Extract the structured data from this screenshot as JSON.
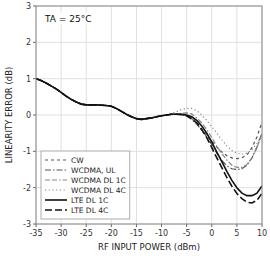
{
  "chart_data": {
    "type": "line",
    "title": "TA = 25°C",
    "xlabel": "RF INPUT POWER (dBm)",
    "ylabel": "LINEARITY ERROR (dB)",
    "xlim": [
      -35,
      10
    ],
    "ylim": [
      -3,
      3
    ],
    "xticks": [
      -35,
      -30,
      -25,
      -20,
      -15,
      -10,
      -5,
      0,
      5,
      10
    ],
    "yticks": [
      -3,
      -2,
      -1,
      0,
      1,
      2,
      3
    ],
    "grid": true,
    "legend": "lower left",
    "x": [
      -35,
      -34,
      -33,
      -32,
      -31,
      -30,
      -29,
      -28,
      -27,
      -26,
      -25,
      -24,
      -23,
      -22,
      -21,
      -20,
      -19,
      -18,
      -17,
      -16,
      -15,
      -14,
      -13,
      -12,
      -11,
      -10,
      -9,
      -8,
      -7,
      -6,
      -5,
      -4,
      -3,
      -2,
      -1,
      0,
      1,
      2,
      3,
      4,
      5,
      6,
      7,
      8,
      9,
      10
    ],
    "series": [
      {
        "name": "CW",
        "color": "#555555",
        "line_style": "dashed",
        "values": [
          1.0,
          0.95,
          0.88,
          0.8,
          0.72,
          0.62,
          0.52,
          0.43,
          0.36,
          0.3,
          0.28,
          0.28,
          0.28,
          0.27,
          0.26,
          0.24,
          0.18,
          0.1,
          0.02,
          -0.05,
          -0.1,
          -0.12,
          -0.1,
          -0.08,
          -0.05,
          -0.02,
          0.0,
          0.02,
          0.02,
          0.01,
          -0.02,
          -0.1,
          -0.22,
          -0.38,
          -0.55,
          -0.72,
          -0.88,
          -1.02,
          -1.12,
          -1.18,
          -1.2,
          -1.18,
          -1.1,
          -0.9,
          -0.6,
          -0.2
        ]
      },
      {
        "name": "WCDMA, UL",
        "color": "#555555",
        "line_style": "dashdot",
        "values": [
          1.0,
          0.95,
          0.88,
          0.8,
          0.72,
          0.62,
          0.52,
          0.43,
          0.36,
          0.3,
          0.28,
          0.28,
          0.28,
          0.27,
          0.26,
          0.24,
          0.18,
          0.1,
          0.02,
          -0.05,
          -0.1,
          -0.12,
          -0.1,
          -0.08,
          -0.05,
          -0.02,
          0.0,
          0.02,
          0.02,
          0.01,
          -0.03,
          -0.12,
          -0.25,
          -0.42,
          -0.6,
          -0.82,
          -1.05,
          -1.25,
          -1.4,
          -1.48,
          -1.5,
          -1.48,
          -1.38,
          -1.18,
          -0.88,
          -0.5
        ]
      },
      {
        "name": "WCDMA DL 1C",
        "color": "#888888",
        "line_style": "dashdashdot",
        "values": [
          1.0,
          0.95,
          0.88,
          0.8,
          0.72,
          0.62,
          0.52,
          0.43,
          0.36,
          0.3,
          0.28,
          0.28,
          0.28,
          0.27,
          0.26,
          0.24,
          0.18,
          0.1,
          0.02,
          -0.05,
          -0.1,
          -0.12,
          -0.1,
          -0.08,
          -0.05,
          -0.02,
          0.0,
          0.02,
          0.03,
          0.05,
          0.06,
          0.03,
          -0.08,
          -0.22,
          -0.4,
          -0.62,
          -0.86,
          -1.06,
          -1.24,
          -1.38,
          -1.44,
          -1.44,
          -1.36,
          -1.18,
          -0.9,
          -0.52
        ]
      },
      {
        "name": "WCDMA DL 4C",
        "color": "#888888",
        "line_style": "dotted",
        "values": [
          1.0,
          0.95,
          0.88,
          0.8,
          0.72,
          0.62,
          0.52,
          0.43,
          0.36,
          0.3,
          0.28,
          0.28,
          0.28,
          0.27,
          0.26,
          0.24,
          0.18,
          0.1,
          0.02,
          -0.05,
          -0.1,
          -0.12,
          -0.1,
          -0.08,
          -0.05,
          -0.03,
          0.0,
          0.05,
          0.1,
          0.15,
          0.18,
          0.18,
          0.12,
          0.0,
          -0.15,
          -0.32,
          -0.5,
          -0.68,
          -0.85,
          -0.98,
          -1.05,
          -1.08,
          -1.05,
          -0.95,
          -0.78,
          -0.55
        ]
      },
      {
        "name": "LTE DL 1C",
        "color": "#111111",
        "line_style": "solid",
        "values": [
          1.0,
          0.95,
          0.88,
          0.8,
          0.72,
          0.62,
          0.52,
          0.43,
          0.36,
          0.3,
          0.28,
          0.28,
          0.28,
          0.27,
          0.26,
          0.24,
          0.18,
          0.1,
          0.02,
          -0.05,
          -0.1,
          -0.12,
          -0.1,
          -0.08,
          -0.05,
          -0.02,
          0.0,
          0.02,
          0.02,
          0.02,
          0.0,
          -0.05,
          -0.15,
          -0.3,
          -0.5,
          -0.75,
          -1.02,
          -1.28,
          -1.55,
          -1.8,
          -2.0,
          -2.15,
          -2.22,
          -2.22,
          -2.15,
          -1.95
        ]
      },
      {
        "name": "LTE DL 4C",
        "color": "#111111",
        "line_style": "longdash",
        "values": [
          1.0,
          0.95,
          0.88,
          0.8,
          0.72,
          0.62,
          0.52,
          0.43,
          0.36,
          0.3,
          0.28,
          0.28,
          0.28,
          0.27,
          0.26,
          0.24,
          0.18,
          0.1,
          0.02,
          -0.05,
          -0.1,
          -0.12,
          -0.1,
          -0.08,
          -0.05,
          -0.02,
          0.0,
          0.02,
          0.02,
          0.01,
          -0.02,
          -0.1,
          -0.22,
          -0.4,
          -0.62,
          -0.9,
          -1.18,
          -1.45,
          -1.72,
          -1.96,
          -2.16,
          -2.3,
          -2.4,
          -2.42,
          -2.35,
          -2.15
        ]
      }
    ]
  }
}
